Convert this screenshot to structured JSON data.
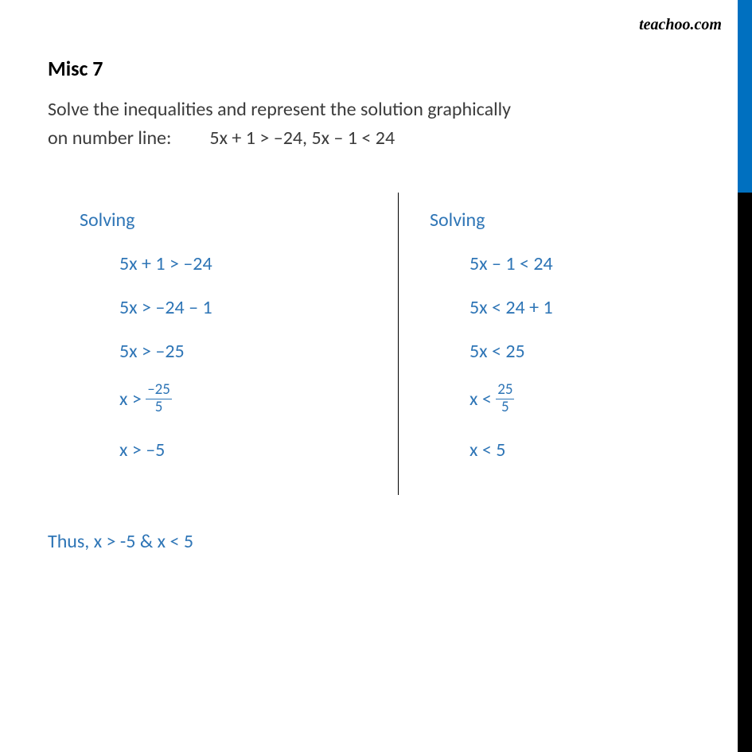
{
  "watermark": "teachoo.com",
  "title": "Misc 7",
  "question_line1": "Solve the inequalities and represent the solution graphically",
  "question_line2": "on number line:  5x + 1 > –24, 5x – 1 < 24",
  "left": {
    "label": "Solving",
    "s1": "5x + 1 > –24",
    "s2": "5x  > –24 – 1",
    "s3": "5x > –25",
    "s4_pre": "x > ",
    "s4_num": "–25",
    "s4_den": "5",
    "s5": "x > –5"
  },
  "right": {
    "label": "Solving",
    "s1": "5x – 1 < 24",
    "s2": "5x  < 24 + 1",
    "s3": "5x < 25",
    "s4_pre": "x < ",
    "s4_num": "25",
    "s4_den": "5",
    "s5": "x < 5"
  },
  "conclusion": "Thus, x > -5 & x < 5",
  "colors": {
    "blue_text": "#2e75b6",
    "bar_blue": "#0070c0",
    "bar_black": "#000000",
    "body_text": "#3b3b3b"
  }
}
